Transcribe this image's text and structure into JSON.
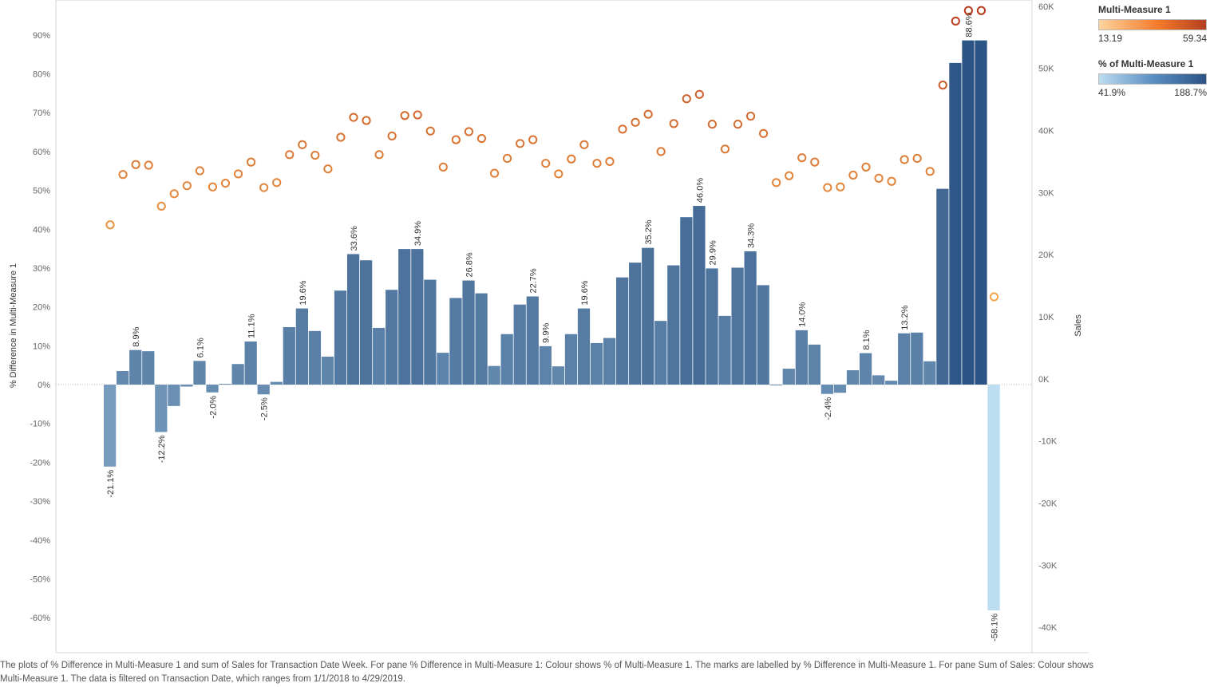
{
  "chart_data": {
    "type": "bar+scatter",
    "x_axis": "Transaction Date Week",
    "bar_series": {
      "name": "% Difference in Multi-Measure 1",
      "axis": "left",
      "values": [
        -21.1,
        3.5,
        8.9,
        8.6,
        -12.2,
        -5.5,
        -0.5,
        6.1,
        -2.0,
        0.2,
        5.3,
        11.1,
        -2.5,
        0.7,
        14.8,
        19.6,
        13.8,
        7.2,
        24.2,
        33.6,
        32.0,
        14.6,
        24.4,
        34.9,
        34.9,
        27.0,
        8.2,
        22.3,
        26.8,
        23.5,
        4.8,
        13.0,
        20.6,
        22.7,
        9.9,
        4.7,
        13.0,
        19.6,
        10.7,
        12.0,
        27.6,
        31.4,
        35.2,
        16.4,
        30.7,
        43.1,
        46.0,
        29.9,
        17.7,
        30.1,
        34.3,
        25.6,
        -0.1,
        4.1,
        14.0,
        10.3,
        -2.4,
        -2.1,
        3.7,
        8.1,
        2.4,
        1.0,
        13.2,
        13.4,
        6.0,
        50.4,
        82.8,
        88.6,
        88.6,
        -58.1
      ],
      "color_measure": "% of Multi-Measure 1",
      "color_values": [
        78.9,
        103.5,
        108.9,
        108.6,
        87.8,
        94.5,
        99.5,
        106.1,
        98.0,
        100.2,
        105.3,
        111.1,
        97.5,
        100.7,
        114.8,
        119.6,
        113.8,
        107.2,
        124.2,
        133.6,
        132.0,
        114.6,
        124.4,
        134.9,
        134.9,
        127.0,
        108.2,
        122.3,
        126.8,
        123.5,
        104.8,
        113.0,
        120.6,
        122.7,
        109.9,
        104.7,
        113.0,
        119.6,
        110.7,
        112.0,
        127.6,
        131.4,
        135.2,
        116.4,
        130.7,
        143.1,
        146.0,
        129.9,
        117.7,
        130.1,
        134.3,
        125.6,
        99.9,
        104.1,
        114.0,
        110.3,
        97.6,
        97.9,
        103.7,
        108.1,
        102.4,
        101.0,
        113.2,
        113.4,
        106.0,
        150.4,
        182.8,
        188.6,
        188.6,
        41.9
      ],
      "labels": {
        "0": "-21.1%",
        "2": "8.9%",
        "4": "-12.2%",
        "7": "6.1%",
        "8": "-2.0%",
        "11": "11.1%",
        "12": "-2.5%",
        "15": "19.6%",
        "19": "33.6%",
        "24": "34.9%",
        "28": "26.8%",
        "33": "22.7%",
        "34": "9.9%",
        "37": "19.6%",
        "42": "35.2%",
        "46": "46.0%",
        "47": "29.9%",
        "50": "34.3%",
        "54": "14.0%",
        "56": "-2.4%",
        "59": "8.1%",
        "62": "13.2%",
        "67": "88.6%",
        "69": "-58.1%"
      }
    },
    "scatter_series": {
      "name": "Sales",
      "axis": "right",
      "values": [
        24800,
        32900,
        34500,
        34400,
        27800,
        29800,
        31100,
        33500,
        30900,
        31500,
        33000,
        34900,
        30800,
        31600,
        36100,
        37700,
        36000,
        33800,
        38900,
        42100,
        41600,
        36100,
        39100,
        42400,
        42500,
        39900,
        34100,
        38500,
        39800,
        38700,
        33100,
        35500,
        37900,
        38500,
        34700,
        33000,
        35400,
        37700,
        34700,
        35000,
        40200,
        41300,
        42600,
        36600,
        41100,
        45100,
        45800,
        41000,
        37000,
        41000,
        42300,
        39500,
        31600,
        32700,
        35600,
        34900,
        30800,
        30900,
        32800,
        34100,
        32300,
        31800,
        35300,
        35500,
        33400,
        47300,
        57600,
        59300,
        59300,
        13200
      ],
      "color_measure": "Multi-Measure 1",
      "color_values": [
        24.8,
        32.9,
        34.5,
        34.4,
        27.8,
        29.8,
        31.1,
        33.5,
        30.9,
        31.5,
        33.0,
        34.9,
        30.8,
        31.6,
        36.1,
        37.7,
        36.0,
        33.8,
        38.9,
        42.1,
        41.6,
        36.1,
        39.1,
        42.4,
        42.5,
        39.9,
        34.1,
        38.5,
        39.8,
        38.7,
        33.1,
        35.5,
        37.9,
        38.5,
        34.7,
        33.0,
        35.4,
        37.7,
        34.7,
        35.0,
        40.2,
        41.3,
        42.6,
        36.6,
        41.1,
        45.1,
        45.8,
        41.0,
        37.0,
        41.0,
        42.3,
        39.5,
        31.6,
        32.7,
        35.6,
        34.9,
        30.8,
        30.9,
        32.8,
        34.1,
        32.3,
        31.8,
        35.3,
        35.5,
        33.4,
        47.3,
        57.6,
        59.3,
        59.3,
        13.19
      ]
    },
    "left_axis": {
      "title": "% Difference in Multi-Measure 1",
      "ylim": [
        -0.69,
        0.99
      ],
      "ticks": [
        "90%",
        "80%",
        "70%",
        "60%",
        "50%",
        "40%",
        "30%",
        "20%",
        "10%",
        "0%",
        "-10%",
        "-20%",
        "-30%",
        "-40%",
        "-50%",
        "-60%"
      ]
    },
    "right_axis": {
      "title": "Sales",
      "ylim": [
        -44100,
        61000
      ],
      "ticks": [
        "60K",
        "50K",
        "40K",
        "30K",
        "20K",
        "10K",
        "0K",
        "-10K",
        "-20K",
        "-30K",
        "-40K"
      ]
    },
    "legends": [
      {
        "title": "Multi-Measure 1",
        "min": "13.19",
        "max": "59.34",
        "color_from": "#fdd49e",
        "color_to": "#b2401f"
      },
      {
        "title": "% of Multi-Measure 1",
        "min": "41.9%",
        "max": "188.7%",
        "color_from": "#bcdcef",
        "color_to": "#2c5485"
      }
    ]
  },
  "caption": "The plots of % Difference in Multi-Measure 1 and sum of Sales for Transaction Date Week.  For pane % Difference in Multi-Measure 1:  Colour shows % of Multi-Measure 1.  The marks are labelled by % Difference in Multi-Measure 1.  For pane Sum of Sales:  Colour shows Multi-Measure 1. The data is filtered on Transaction Date, which ranges from 1/1/2018 to 4/29/2019."
}
